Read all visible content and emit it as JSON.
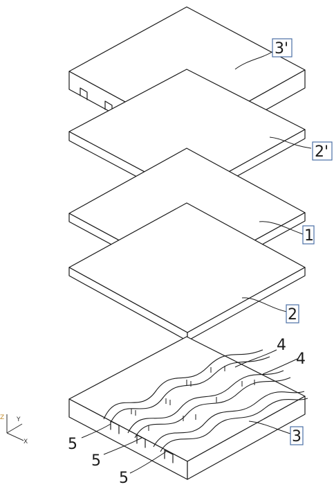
{
  "figure": {
    "labels": {
      "plate_3prime": "3'",
      "plate_2prime": "2'",
      "plate_1": "1",
      "plate_2": "2",
      "plate_3": "3",
      "channel_4a": "4",
      "channel_4b": "4",
      "channel_5a": "5",
      "channel_5b": "5",
      "channel_5c": "5"
    },
    "axes": {
      "z": "Z",
      "y": "Y",
      "x": "X"
    }
  }
}
